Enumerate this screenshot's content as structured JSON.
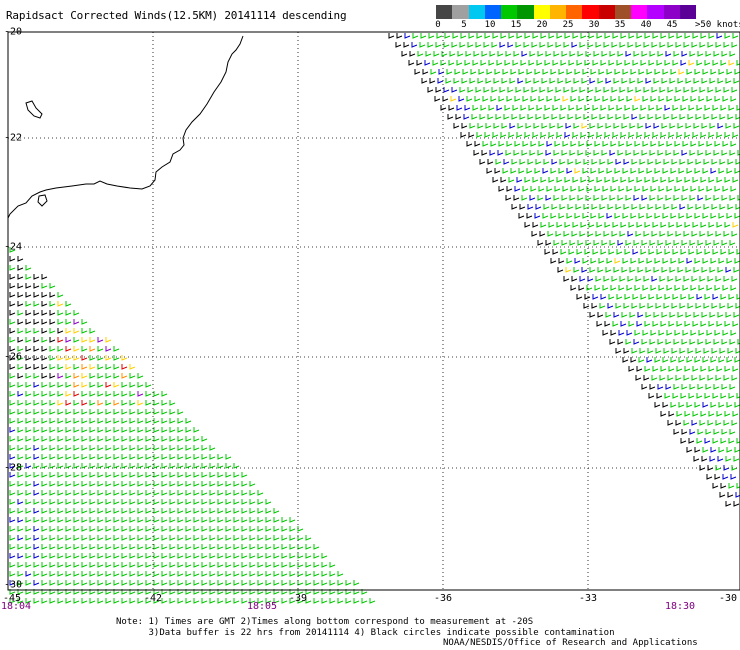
{
  "header": {
    "title": "Rapidsact Corrected Winds(12.5KM) 20141114 descending"
  },
  "legend": {
    "colors": [
      "#464646",
      "#a0a0a0",
      "#00c8f0",
      "#0064ff",
      "#00c800",
      "#009600",
      "#ffff00",
      "#ffb400",
      "#ff6400",
      "#ff0000",
      "#c80000",
      "#a05028",
      "#ff00ff",
      "#b400ff",
      "#8c00c8",
      "#5a0096"
    ],
    "labels": [
      "0",
      "5",
      "10",
      "15",
      "20",
      "25",
      "30",
      "35",
      "40",
      "45"
    ],
    "unit_label": ">50 knots"
  },
  "axes": {
    "lat_labels": [
      "-20",
      "-22",
      "-24",
      "-26",
      "-28",
      "-30"
    ],
    "lon_labels": [
      "-45",
      "-42",
      "-39",
      "-36",
      "-33",
      "-30"
    ]
  },
  "time_labels": [
    "18:04",
    "18:05",
    "18:30"
  ],
  "notes": {
    "line1": "Note: 1) Times are GMT 2)Times along bottom correspond to measurement at -20S",
    "line2": "      3)Data buffer is 22 hrs from 20141114 4) Black circles indicate possible contamination"
  },
  "credit": "NOAA/NESDIS/Office of Research and Applications",
  "wind_colors": {
    "black": "#000000",
    "green": "#00c800",
    "blue": "#0000d0",
    "yellow": "#ffd000",
    "orange": "#ff8c00",
    "red": "#e00000",
    "purple": "#8c00c8"
  }
}
